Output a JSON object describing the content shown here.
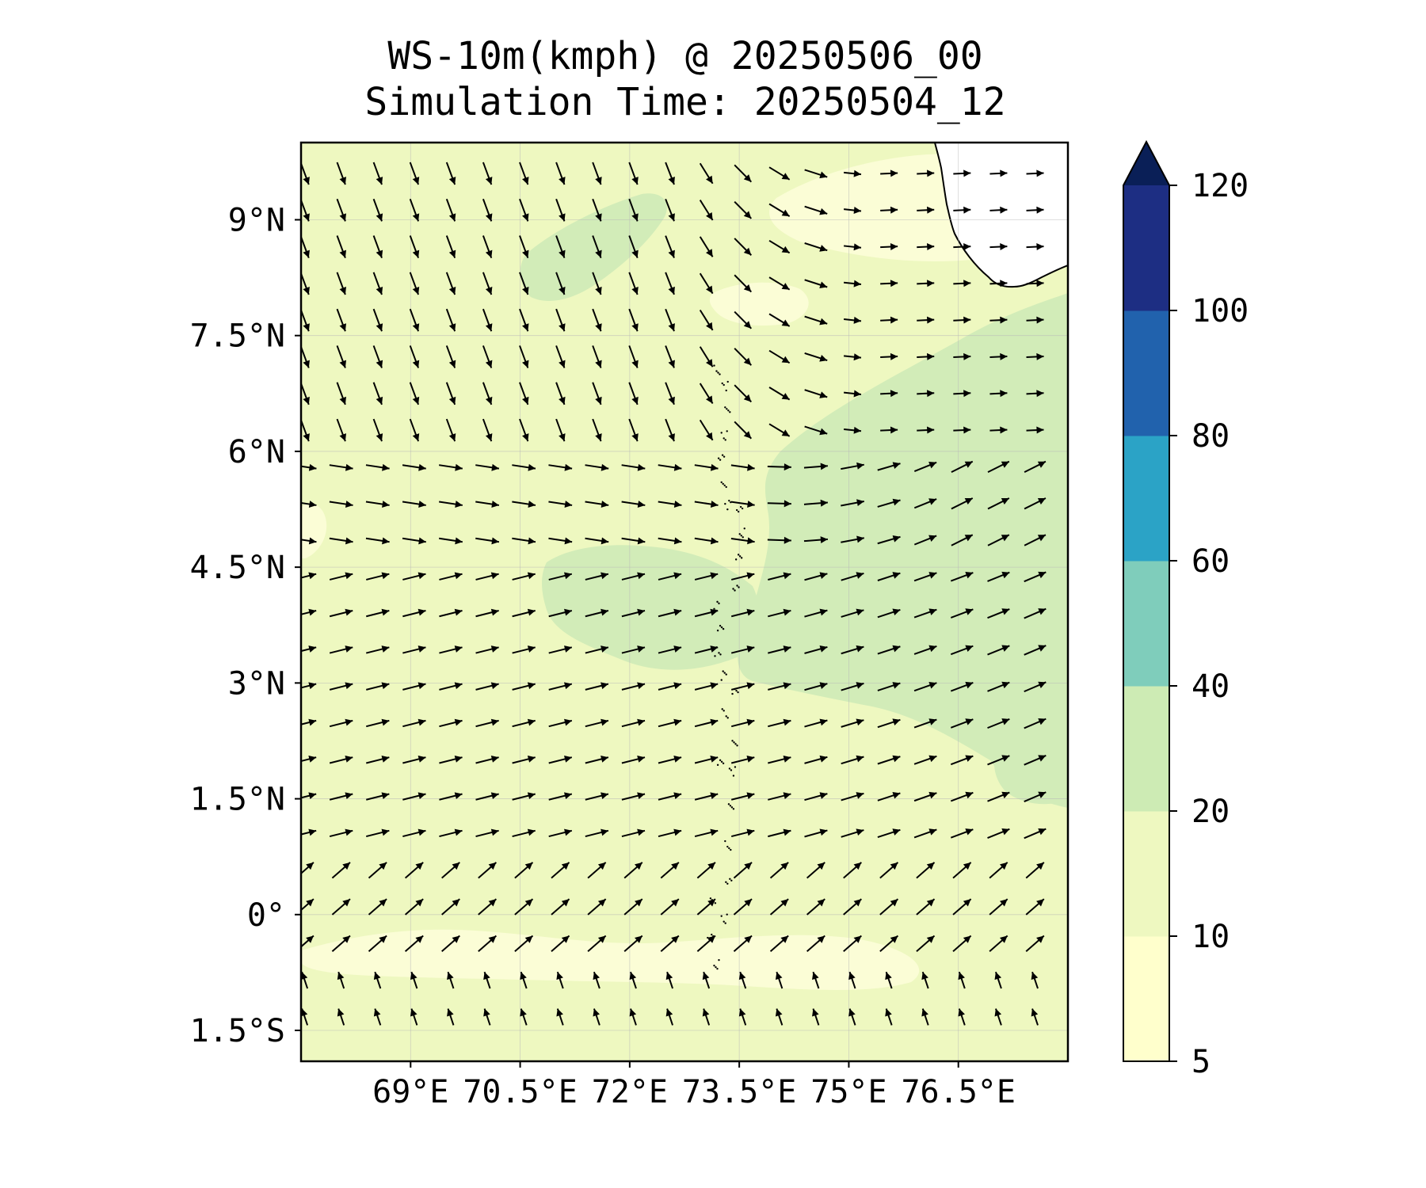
{
  "title": {
    "line1": "WS-10m(kmph) @ 20250506_00",
    "line2": "Simulation Time: 20250504_12"
  },
  "map": {
    "lon_range": [
      67.5,
      78.0
    ],
    "lat_range": [
      -1.9,
      10.0
    ],
    "lon_ticks": [
      {
        "value": 69.0,
        "label": "69°E"
      },
      {
        "value": 70.5,
        "label": "70.5°E"
      },
      {
        "value": 72.0,
        "label": "72°E"
      },
      {
        "value": 73.5,
        "label": "73.5°E"
      },
      {
        "value": 75.0,
        "label": "75°E"
      },
      {
        "value": 76.5,
        "label": "76.5°E"
      }
    ],
    "lat_ticks": [
      {
        "value": 9.0,
        "label": "9°N"
      },
      {
        "value": 7.5,
        "label": "7.5°N"
      },
      {
        "value": 6.0,
        "label": "6°N"
      },
      {
        "value": 4.5,
        "label": "4.5°N"
      },
      {
        "value": 3.0,
        "label": "3°N"
      },
      {
        "value": 1.5,
        "label": "1.5°N"
      },
      {
        "value": 0.0,
        "label": "0°"
      },
      {
        "value": -1.5,
        "label": "1.5°S"
      }
    ],
    "field": "wind speed at 10 m (kmph) with wind vectors",
    "grid": true
  },
  "colorbar": {
    "levels": [
      5,
      10,
      20,
      40,
      60,
      80,
      100,
      120
    ],
    "tick_labels": [
      "5",
      "10",
      "20",
      "40",
      "60",
      "80",
      "100",
      "120"
    ],
    "colors": [
      "#ffffcc",
      "#eef8c0",
      "#cdebb4",
      "#7fcdbb",
      "#2ba3c6",
      "#2162ad",
      "#1d2e83",
      "#0a1f57"
    ],
    "extend": "max"
  },
  "colors": {
    "background_field": "#eef8c0",
    "low_speed": "#fbfdd6",
    "mid_speed": "#d2ecb8",
    "land": "#ffffff",
    "arrow": "#000000"
  }
}
